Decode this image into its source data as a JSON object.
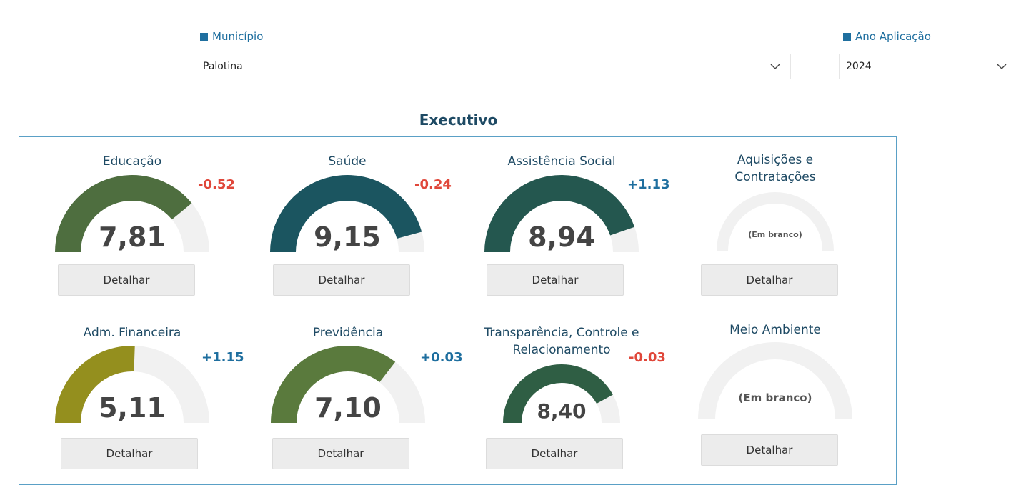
{
  "filters": {
    "municipio": {
      "label": "Município",
      "value": "Palotina"
    },
    "ano": {
      "label": "Ano Aplicação",
      "value": "2024"
    }
  },
  "section_title": "Executivo",
  "detail_label": "Detalhar",
  "cards": [
    {
      "id": "educacao",
      "title_lines": [
        "Educação"
      ],
      "value": 7.81,
      "display": "7,81",
      "delta": "-0.52",
      "delta_dir": "neg",
      "color": "#4e6e3f"
    },
    {
      "id": "saude",
      "title_lines": [
        "Saúde"
      ],
      "value": 9.15,
      "display": "9,15",
      "delta": "-0.24",
      "delta_dir": "neg",
      "color": "#1b5560"
    },
    {
      "id": "assistencia",
      "title_lines": [
        "Assistência Social"
      ],
      "value": 8.94,
      "display": "8,94",
      "delta": "+1.13",
      "delta_dir": "pos",
      "color": "#24574f"
    },
    {
      "id": "aquisicoes",
      "title_lines": [
        "Aquisições e",
        "Contratações"
      ],
      "value": null,
      "display": "(Em branco)",
      "delta": "",
      "delta_dir": "",
      "color": "#f1f1f1"
    },
    {
      "id": "adm",
      "title_lines": [
        "Adm. Financeira"
      ],
      "value": 5.11,
      "display": "5,11",
      "delta": "+1.15",
      "delta_dir": "pos",
      "color": "#948f1e"
    },
    {
      "id": "previdencia",
      "title_lines": [
        "Previdência"
      ],
      "value": 7.1,
      "display": "7,10",
      "delta": "+0.03",
      "delta_dir": "pos",
      "color": "#5a7a3d"
    },
    {
      "id": "transparencia",
      "title_lines": [
        "Transparência, Controle e",
        "Relacionamento"
      ],
      "value": 8.4,
      "display": "8,40",
      "delta": "-0.03",
      "delta_dir": "neg",
      "color": "#2f5e44"
    },
    {
      "id": "meio_ambiente",
      "title_lines": [
        "Meio Ambiente"
      ],
      "value": null,
      "display": "(Em branco)",
      "delta": "",
      "delta_dir": "",
      "color": "#f1f1f1"
    }
  ],
  "colors": {
    "delta_neg": "#e0473a",
    "delta_pos": "#1f6f9f",
    "gauge_track": "#f1f1f1"
  }
}
